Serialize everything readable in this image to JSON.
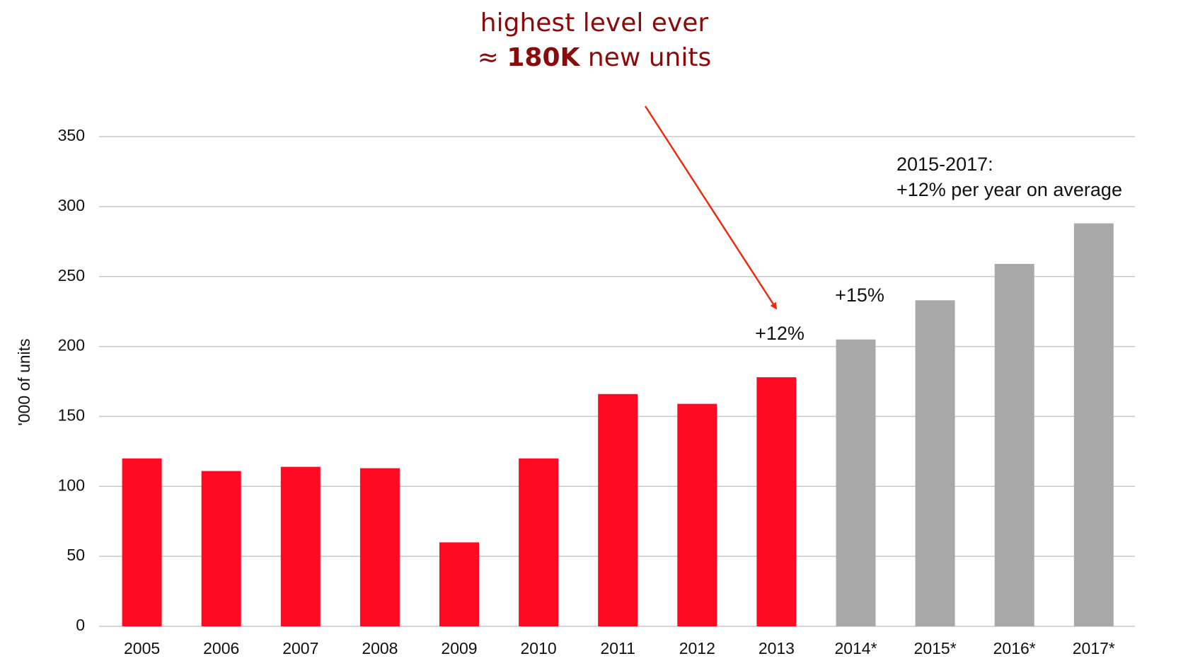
{
  "chart_data": {
    "type": "bar",
    "y_label": "'000 of units",
    "categories": [
      "2005",
      "2006",
      "2007",
      "2008",
      "2009",
      "2010",
      "2011",
      "2012",
      "2013",
      "2014*",
      "2015*",
      "2016*",
      "2017*"
    ],
    "values": [
      120,
      111,
      114,
      113,
      60,
      120,
      166,
      159,
      178,
      205,
      233,
      259,
      288
    ],
    "colors": [
      "#ff0a23",
      "#ff0a23",
      "#ff0a23",
      "#ff0a23",
      "#ff0a23",
      "#ff0a23",
      "#ff0a23",
      "#ff0a23",
      "#ff0a23",
      "#a8a8a8",
      "#a8a8a8",
      "#a8a8a8",
      "#a8a8a8"
    ],
    "ylim": [
      0,
      350
    ],
    "yticks": [
      0,
      50,
      100,
      150,
      200,
      250,
      300,
      350
    ],
    "grid": true,
    "annotations": {
      "top_line1": "highest level ever",
      "top_line2_prefix": "≈ ",
      "top_line2_bold": "180K",
      "top_line2_suffix": " new units",
      "growth_2013": "+12%",
      "growth_2014": "+15%",
      "forecast_line1": "2015-2017:",
      "forecast_line2": "+12% per year on average"
    }
  }
}
